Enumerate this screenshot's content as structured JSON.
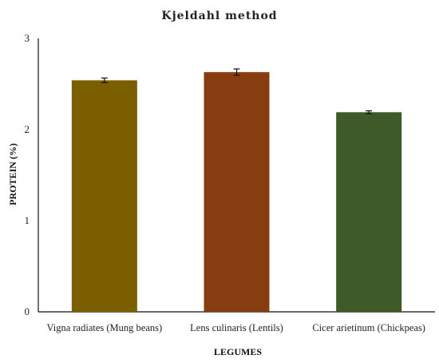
{
  "chart_data": {
    "type": "bar",
    "title": "Kjeldahl method",
    "xlabel": "LEGUMES",
    "ylabel": "PROTEIN (%)",
    "ylim": [
      0,
      3
    ],
    "yticks": [
      "0",
      "1",
      "2",
      "3"
    ],
    "grid": false,
    "categories": [
      "Vigna radiates (Mung beans)",
      "Lens culinaris (Lentils)",
      "Cicer arietinum (Chickpeas)"
    ],
    "values": [
      2.54,
      2.63,
      2.19
    ],
    "errors": [
      0.025,
      0.035,
      0.015
    ],
    "colors": [
      "#7b5e00",
      "#873d0f",
      "#3d5a28"
    ]
  }
}
